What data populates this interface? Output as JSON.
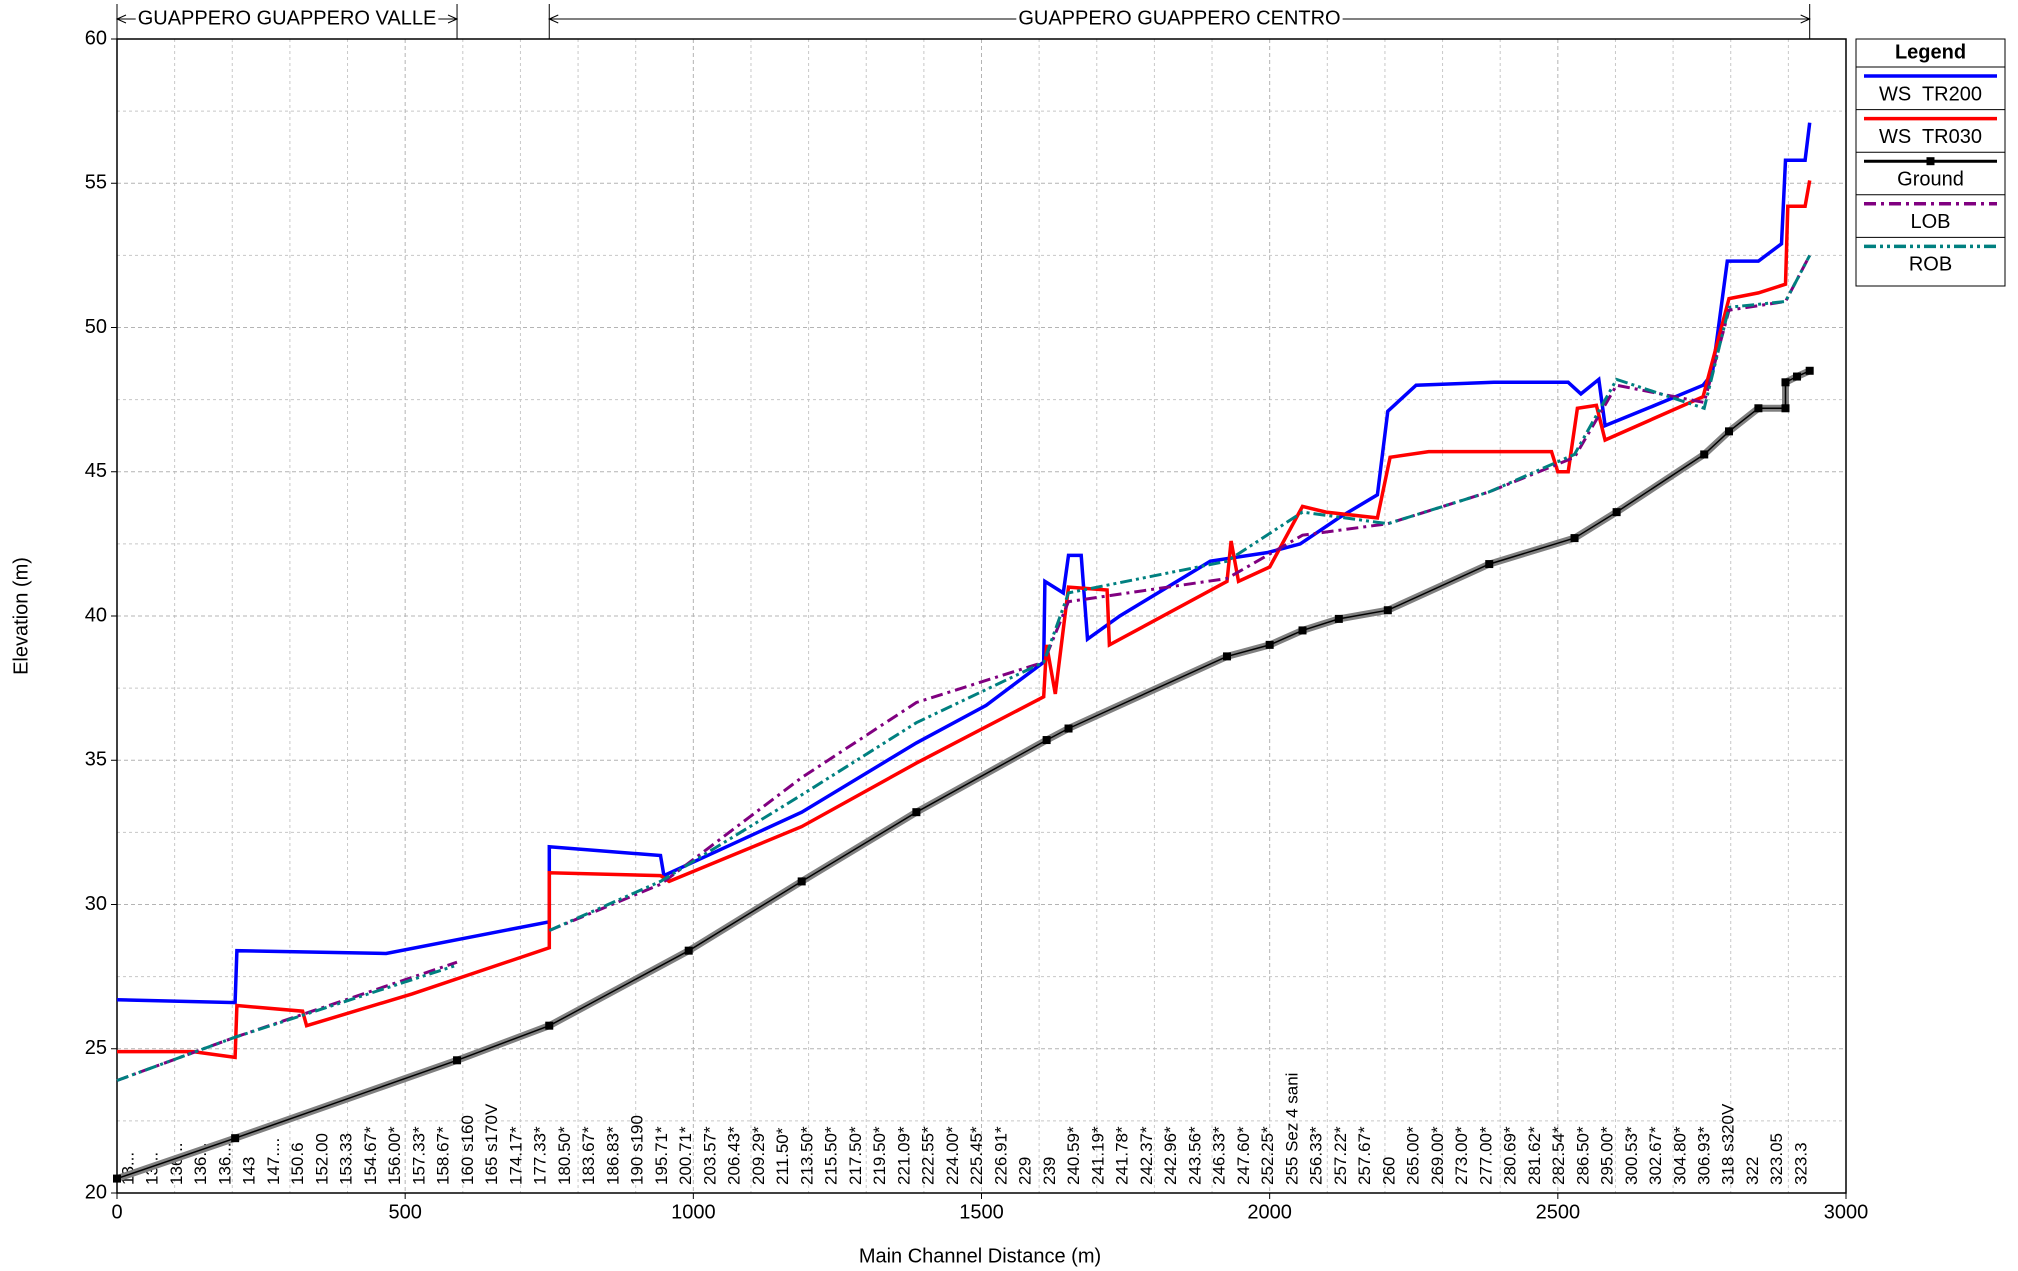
{
  "chart_data": {
    "type": "line",
    "xlabel": "Main Channel Distance (m)",
    "ylabel": "Elevation (m)",
    "legend_title": "Legend",
    "legend": "outside-right",
    "grid": true,
    "xlim": [
      0,
      3000
    ],
    "xticks": [
      0,
      500,
      1000,
      1500,
      2000,
      2500,
      3000
    ],
    "ylim": [
      20,
      60
    ],
    "yticks": [
      20,
      25,
      30,
      35,
      40,
      45,
      50,
      55,
      60
    ],
    "reaches": [
      {
        "name": "GUAPPERO GUAPPERO VALLE",
        "start": 0,
        "end": 590
      },
      {
        "name": "GUAPPERO GUAPPERO CENTRO",
        "start": 750,
        "end": 2937
      }
    ],
    "section_labels": [
      "13...",
      "13...",
      "136...",
      "136...",
      "136...",
      "143",
      "147....",
      "150.6",
      "152.00",
      "153.33",
      "154.67*",
      "156.00*",
      "157.33*",
      "158.67*",
      "160 s160",
      "165 s170V",
      "174.17*",
      "177.33*",
      "180.50*",
      "183.67*",
      "186.83*",
      "190 s190",
      "195.71*",
      "200.71*",
      "203.57*",
      "206.43*",
      "209.29*",
      "211.50*",
      "213.50*",
      "215.50*",
      "217.50*",
      "219.50*",
      "221.09*",
      "222.55*",
      "224.00*",
      "225.45*",
      "226.91*",
      "229",
      "239",
      "240.59*",
      "241.19*",
      "241.78*",
      "242.37*",
      "242.96*",
      "243.56*",
      "246.33*",
      "247.60*",
      "252.25*",
      "255 Sez 4 sani",
      "256.33*",
      "257.22*",
      "257.67*",
      "260",
      "265.00*",
      "269.00*",
      "273.00*",
      "277.00*",
      "280.69*",
      "281.62*",
      "282.54*",
      "286.50*",
      "295.00*",
      "300.53*",
      "302.67*",
      "304.80*",
      "306.93*",
      "318 s320V",
      "322",
      "323.05",
      "323.3"
    ],
    "series": [
      {
        "name": "WS  TR200",
        "color": "#0000ff",
        "style": "solid",
        "x": [
          0,
          205,
          208,
          467,
          750,
          750,
          943,
          949,
          1188,
          1387,
          1508,
          1608,
          1610,
          1642,
          1651,
          1673,
          1684,
          1740,
          1897,
          1997,
          2053,
          2120,
          2187,
          2205,
          2254,
          2389,
          2518,
          2540,
          2571,
          2582,
          2656,
          2752,
          2768,
          2794,
          2848,
          2888,
          2895,
          2929,
          2937
        ],
        "values": [
          26.7,
          26.6,
          28.4,
          28.3,
          29.4,
          32.0,
          31.7,
          31.0,
          33.2,
          35.6,
          36.9,
          38.4,
          41.2,
          40.8,
          42.1,
          42.1,
          39.2,
          40.0,
          41.9,
          42.2,
          42.5,
          43.4,
          44.2,
          47.1,
          48.0,
          48.1,
          48.1,
          47.7,
          48.2,
          46.6,
          47.2,
          48.0,
          48.4,
          52.3,
          52.3,
          52.9,
          55.8,
          55.8,
          57.1
        ]
      },
      {
        "name": "WS  TR030",
        "color": "#ff0000",
        "style": "solid",
        "x": [
          0,
          132,
          205,
          208,
          322,
          329,
          512,
          750,
          750,
          943,
          958,
          1188,
          1387,
          1608,
          1613,
          1628,
          1651,
          1718,
          1722,
          1926,
          1933,
          1946,
          2000,
          2057,
          2098,
          2187,
          2209,
          2276,
          2389,
          2489,
          2500,
          2518,
          2534,
          2567,
          2582,
          2752,
          2797,
          2848,
          2895,
          2899,
          2929,
          2937
        ],
        "values": [
          24.9,
          24.9,
          24.7,
          26.5,
          26.3,
          25.8,
          26.9,
          28.5,
          31.1,
          31.0,
          30.8,
          32.7,
          34.9,
          37.2,
          39.0,
          37.3,
          41.0,
          40.9,
          39.0,
          41.2,
          42.6,
          41.2,
          41.7,
          43.8,
          43.6,
          43.4,
          45.5,
          45.7,
          45.7,
          45.7,
          45.0,
          45.0,
          47.2,
          47.3,
          46.1,
          47.6,
          51.0,
          51.2,
          51.5,
          54.2,
          54.2,
          55.1
        ]
      },
      {
        "name": "Ground",
        "color": "#000000",
        "style": "ground",
        "x": [
          0,
          205,
          590,
          750,
          992,
          1188,
          1387,
          1613,
          1651,
          1926,
          2000,
          2057,
          2120,
          2205,
          2381,
          2529,
          2602,
          2754,
          2797,
          2848,
          2895,
          2895,
          2915,
          2937
        ],
        "values": [
          20.5,
          21.9,
          24.6,
          25.8,
          28.4,
          30.8,
          33.2,
          35.7,
          36.1,
          38.6,
          39.0,
          39.5,
          39.9,
          40.2,
          41.8,
          42.7,
          43.6,
          45.6,
          46.4,
          47.2,
          47.2,
          48.1,
          48.3,
          48.5
        ]
      },
      {
        "name": "LOB",
        "color": "#800080",
        "style": "dashdot",
        "x": [
          0,
          205,
          590,
          670,
          750,
          943,
          1188,
          1387,
          1608,
          1651,
          1926,
          2057,
          2205,
          2381,
          2529,
          2602,
          2754,
          2797,
          2895,
          2937
        ],
        "values": [
          23.9,
          25.4,
          28.0,
          null,
          29.1,
          30.7,
          34.4,
          37.0,
          38.4,
          40.5,
          41.3,
          42.8,
          43.2,
          44.3,
          45.5,
          48.0,
          47.4,
          50.6,
          50.9,
          52.5
        ]
      },
      {
        "name": "ROB",
        "color": "#008080",
        "style": "dashdotdot",
        "x": [
          0,
          205,
          590,
          670,
          750,
          943,
          1188,
          1387,
          1608,
          1651,
          1926,
          2057,
          2205,
          2381,
          2529,
          2602,
          2754,
          2797,
          2895,
          2937
        ],
        "values": [
          23.9,
          25.4,
          27.9,
          null,
          29.1,
          30.8,
          33.8,
          36.3,
          38.4,
          40.8,
          41.9,
          43.6,
          43.2,
          44.3,
          45.6,
          48.2,
          47.2,
          50.7,
          50.9,
          52.5
        ]
      }
    ]
  }
}
